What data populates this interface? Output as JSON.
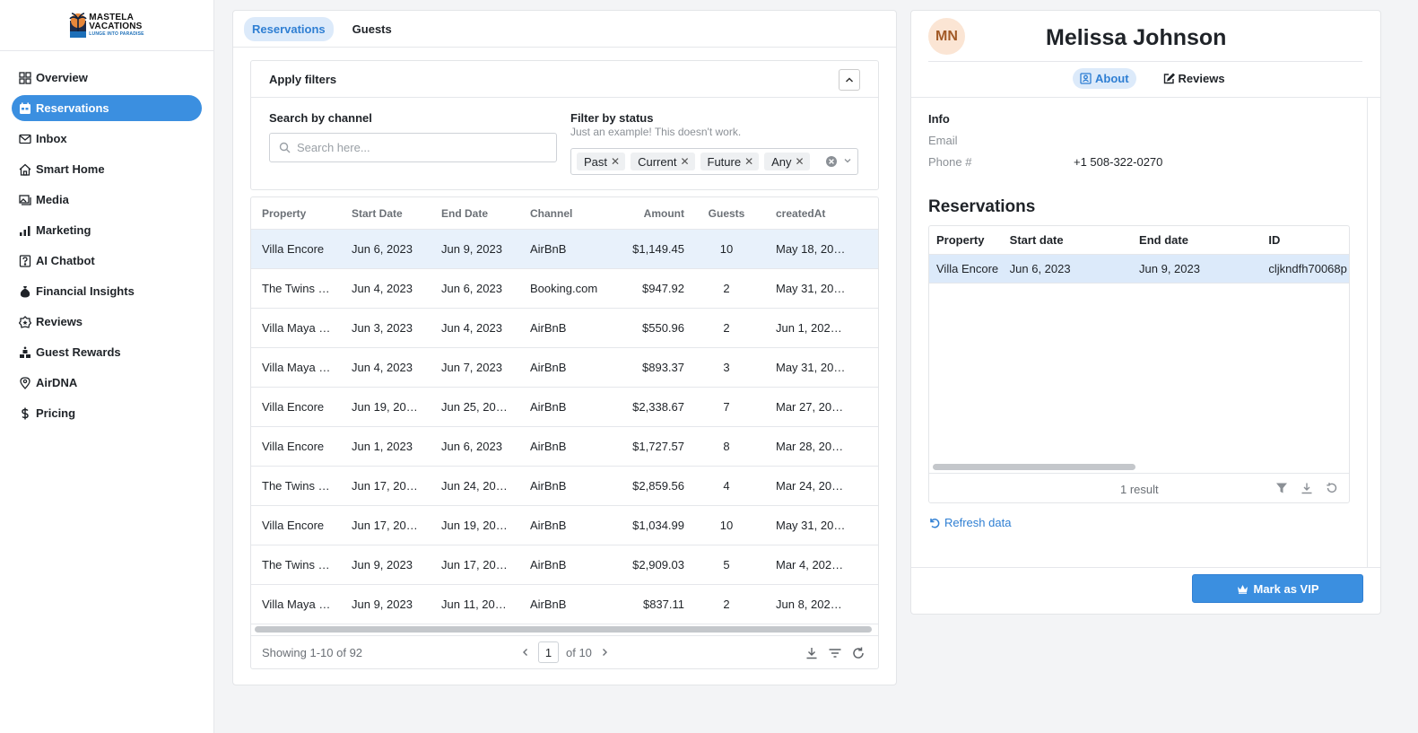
{
  "brand": {
    "line1": "MASTELA",
    "line2": "VACATIONS",
    "line3": "LUNGE INTO PARADISE"
  },
  "nav": [
    {
      "label": "Overview",
      "icon": "grid-icon",
      "active": false
    },
    {
      "label": "Reservations",
      "icon": "calendar-icon",
      "active": true
    },
    {
      "label": "Inbox",
      "icon": "mail-icon",
      "active": false
    },
    {
      "label": "Smart Home",
      "icon": "home-icon",
      "active": false
    },
    {
      "label": "Media",
      "icon": "photos-icon",
      "active": false
    },
    {
      "label": "Marketing",
      "icon": "chart-icon",
      "active": false
    },
    {
      "label": "AI Chatbot",
      "icon": "help-icon",
      "active": false
    },
    {
      "label": "Financial Insights",
      "icon": "money-bag-icon",
      "active": false
    },
    {
      "label": "Reviews",
      "icon": "star-badge-icon",
      "active": false
    },
    {
      "label": "Guest Rewards",
      "icon": "rewards-icon",
      "active": false
    },
    {
      "label": "AirDNA",
      "icon": "location-pin-icon",
      "active": false
    },
    {
      "label": "Pricing",
      "icon": "dollar-icon",
      "active": false
    }
  ],
  "left": {
    "tabs": [
      {
        "label": "Reservations",
        "active": true
      },
      {
        "label": "Guests",
        "active": false
      }
    ],
    "filters": {
      "title": "Apply filters",
      "search_label": "Search by channel",
      "search_placeholder": "Search here...",
      "status_label": "Filter by status",
      "status_desc": "Just an example! This doesn't work.",
      "chips": [
        "Past",
        "Current",
        "Future",
        "Any"
      ]
    },
    "table": {
      "columns": [
        "Property",
        "Start Date",
        "End Date",
        "Channel",
        "Amount",
        "Guests",
        "createdAt"
      ],
      "rows": [
        {
          "property": "Villa Encore",
          "start": "Jun 6, 2023",
          "end": "Jun 9, 2023",
          "channel": "AirBnB",
          "amount": "$1,149.45",
          "guests": "10",
          "created": "May 18, 20…",
          "selected": true
        },
        {
          "property": "The Twins …",
          "start": "Jun 4, 2023",
          "end": "Jun 6, 2023",
          "channel": "Booking.com",
          "amount": "$947.92",
          "guests": "2",
          "created": "May 31, 20…",
          "selected": false
        },
        {
          "property": "Villa Maya …",
          "start": "Jun 3, 2023",
          "end": "Jun 4, 2023",
          "channel": "AirBnB",
          "amount": "$550.96",
          "guests": "2",
          "created": "Jun 1, 202…",
          "selected": false
        },
        {
          "property": "Villa Maya …",
          "start": "Jun 4, 2023",
          "end": "Jun 7, 2023",
          "channel": "AirBnB",
          "amount": "$893.37",
          "guests": "3",
          "created": "May 31, 20…",
          "selected": false
        },
        {
          "property": "Villa Encore",
          "start": "Jun 19, 20…",
          "end": "Jun 25, 20…",
          "channel": "AirBnB",
          "amount": "$2,338.67",
          "guests": "7",
          "created": "Mar 27, 20…",
          "selected": false
        },
        {
          "property": "Villa Encore",
          "start": "Jun 1, 2023",
          "end": "Jun 6, 2023",
          "channel": "AirBnB",
          "amount": "$1,727.57",
          "guests": "8",
          "created": "Mar 28, 20…",
          "selected": false
        },
        {
          "property": "The Twins …",
          "start": "Jun 17, 20…",
          "end": "Jun 24, 20…",
          "channel": "AirBnB",
          "amount": "$2,859.56",
          "guests": "4",
          "created": "Mar 24, 20…",
          "selected": false
        },
        {
          "property": "Villa Encore",
          "start": "Jun 17, 20…",
          "end": "Jun 19, 20…",
          "channel": "AirBnB",
          "amount": "$1,034.99",
          "guests": "10",
          "created": "May 31, 20…",
          "selected": false
        },
        {
          "property": "The Twins …",
          "start": "Jun 9, 2023",
          "end": "Jun 17, 20…",
          "channel": "AirBnB",
          "amount": "$2,909.03",
          "guests": "5",
          "created": "Mar 4, 202…",
          "selected": false
        },
        {
          "property": "Villa Maya …",
          "start": "Jun 9, 2023",
          "end": "Jun 11, 20…",
          "channel": "AirBnB",
          "amount": "$837.11",
          "guests": "2",
          "created": "Jun 8, 202…",
          "selected": false
        }
      ],
      "showing": "Showing 1-10 of 92",
      "page": "1",
      "of_pages": "of 10"
    }
  },
  "right": {
    "initials": "MN",
    "name": "Melissa Johnson",
    "tabs": [
      {
        "label": "About",
        "active": true
      },
      {
        "label": "Reviews",
        "active": false
      }
    ],
    "info_title": "Info",
    "email_label": "Email",
    "email_value": "",
    "phone_label": "Phone #",
    "phone_value": "+1 508-322-0270",
    "res_title": "Reservations",
    "res_columns": [
      "Property",
      "Start date",
      "End date",
      "ID"
    ],
    "res_rows": [
      {
        "property": "Villa Encore",
        "start": "Jun 6, 2023",
        "end": "Jun 9, 2023",
        "id": "cljkndfh70068p"
      }
    ],
    "result_count": "1 result",
    "refresh_label": "Refresh data",
    "vip_label": "Mark as VIP"
  },
  "colors": {
    "accent": "#3b8fe0",
    "accent_light": "#dceafa",
    "selected_row": "#e8f1fb"
  }
}
